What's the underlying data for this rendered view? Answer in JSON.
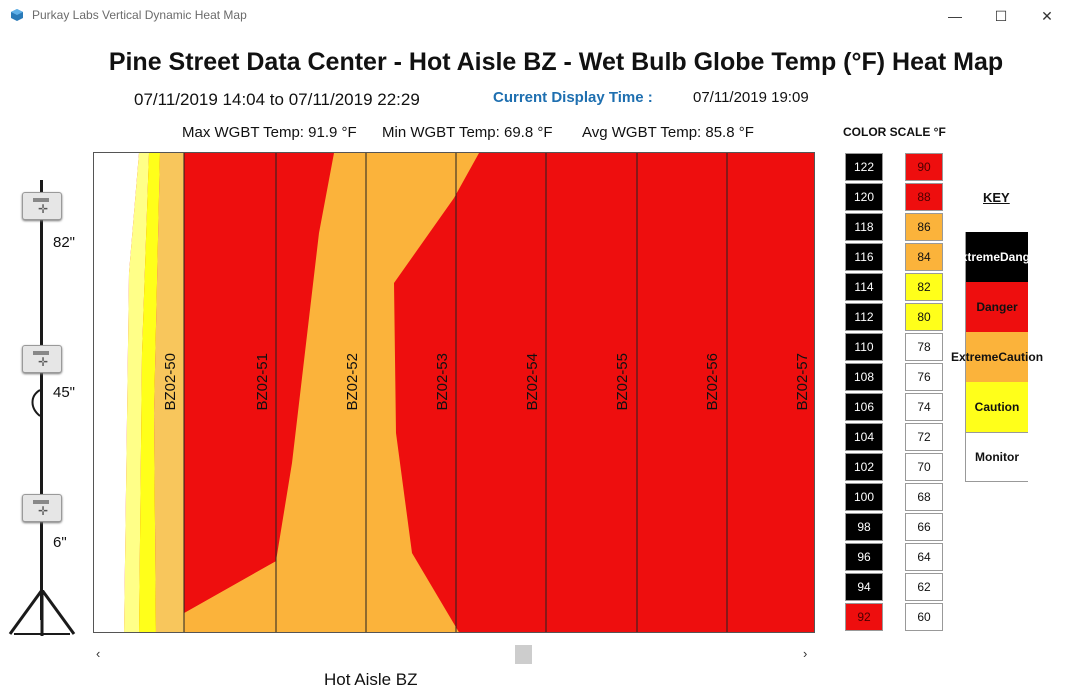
{
  "window": {
    "title": "Purkay Labs Vertical Dynamic Heat Map",
    "minimize_glyph": "—",
    "maximize_glyph": "☐",
    "close_glyph": "✕"
  },
  "header": {
    "title": "Pine Street Data Center - Hot Aisle BZ - Wet Bulb Globe Temp (°F) Heat Map",
    "range": "07/11/2019 14:04 to 07/11/2019 22:29",
    "current_display_label": "Current Display Time :",
    "current_display_value": "07/11/2019 19:09"
  },
  "stats": {
    "max": "Max WGBT Temp: 91.9 °F",
    "min": "Min WGBT Temp: 69.8 °F",
    "avg": "Avg WGBT Temp: 85.8 °F"
  },
  "pole": {
    "heights": [
      "82\"",
      "45\"",
      "6\""
    ]
  },
  "heatmap": {
    "racks": [
      "BZ02-50",
      "BZ02-51",
      "BZ02-52",
      "BZ02-53",
      "BZ02-54",
      "BZ02-55",
      "BZ02-56",
      "BZ02-57"
    ],
    "colors": {
      "red": "#ee0e0e",
      "orange": "#fbb33b",
      "yellow": "#ffff1a",
      "pale_yellow": "#ffff88",
      "light_orange": "#f8c65c"
    }
  },
  "scroll": {
    "left_glyph": "‹",
    "right_glyph": "›"
  },
  "aisle_label": "Hot Aisle BZ",
  "color_scale": {
    "title": "COLOR SCALE °F",
    "left_column": [
      {
        "value": "122",
        "color": "#000000"
      },
      {
        "value": "120",
        "color": "#000000"
      },
      {
        "value": "118",
        "color": "#000000"
      },
      {
        "value": "116",
        "color": "#000000"
      },
      {
        "value": "114",
        "color": "#000000"
      },
      {
        "value": "112",
        "color": "#000000"
      },
      {
        "value": "110",
        "color": "#000000"
      },
      {
        "value": "108",
        "color": "#000000"
      },
      {
        "value": "106",
        "color": "#000000"
      },
      {
        "value": "104",
        "color": "#000000"
      },
      {
        "value": "102",
        "color": "#000000"
      },
      {
        "value": "100",
        "color": "#000000"
      },
      {
        "value": "98",
        "color": "#000000"
      },
      {
        "value": "96",
        "color": "#000000"
      },
      {
        "value": "94",
        "color": "#000000"
      },
      {
        "value": "92",
        "color": "#ee0e0e"
      }
    ],
    "right_column": [
      {
        "value": "90",
        "color": "#ee0e0e"
      },
      {
        "value": "88",
        "color": "#ee0e0e"
      },
      {
        "value": "86",
        "color": "#fbb33b"
      },
      {
        "value": "84",
        "color": "#fbb33b"
      },
      {
        "value": "82",
        "color": "#ffff1a"
      },
      {
        "value": "80",
        "color": "#ffff1a"
      },
      {
        "value": "78",
        "color": "#ffffff"
      },
      {
        "value": "76",
        "color": "#ffffff"
      },
      {
        "value": "74",
        "color": "#ffffff"
      },
      {
        "value": "72",
        "color": "#ffffff"
      },
      {
        "value": "70",
        "color": "#ffffff"
      },
      {
        "value": "68",
        "color": "#ffffff"
      },
      {
        "value": "66",
        "color": "#ffffff"
      },
      {
        "value": "64",
        "color": "#ffffff"
      },
      {
        "value": "62",
        "color": "#ffffff"
      },
      {
        "value": "60",
        "color": "#ffffff"
      }
    ]
  },
  "key": {
    "title": "KEY",
    "items": [
      {
        "line1": "Extreme",
        "line2": "Danger",
        "color": "#000000",
        "text_color": "#ffffff"
      },
      {
        "line1": "Danger",
        "line2": "",
        "color": "#ee0e0e",
        "text_color": "#111111"
      },
      {
        "line1": "Extreme",
        "line2": "Caution",
        "color": "#fbb33b",
        "text_color": "#111111"
      },
      {
        "line1": "Caution",
        "line2": "",
        "color": "#ffff1a",
        "text_color": "#111111"
      },
      {
        "line1": "Monitor",
        "line2": "",
        "color": "#ffffff",
        "text_color": "#111111"
      }
    ]
  }
}
